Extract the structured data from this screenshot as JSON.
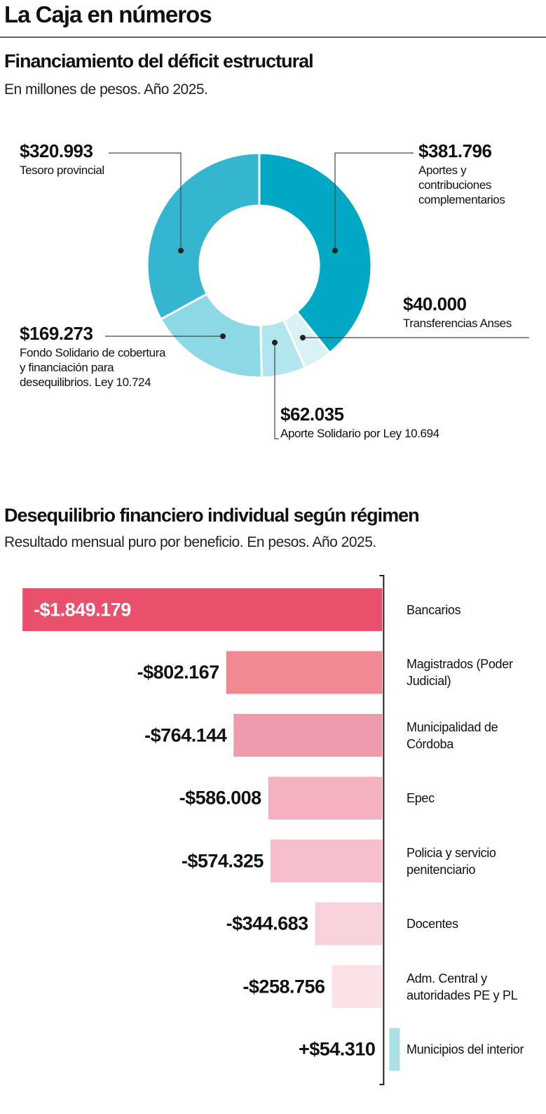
{
  "header": {
    "title": "La Caja en números"
  },
  "chart_data": [
    {
      "type": "donut",
      "title": "Financiamiento del déficit estructural",
      "subtitle": "En millones de pesos. Año 2025.",
      "categories": [
        "Aportes y contribuciones complementarios",
        "Transferencias Anses",
        "Aporte Solidario por Ley 10.694",
        "Fondo Solidario de cobertura y financiación para desequilibrios. Ley 10.724",
        "Tesoro provincial"
      ],
      "values": [
        381796,
        40000,
        62035,
        169273,
        320993
      ],
      "value_labels": [
        "$381.796",
        "$40.000",
        "$62.035",
        "$169.273",
        "$320.993"
      ],
      "colors": [
        "#00a8c3",
        "#d8f2f6",
        "#b2e6ee",
        "#8cd8e5",
        "#34b6d0"
      ]
    },
    {
      "type": "bar",
      "orientation": "horizontal",
      "title": "Desequilibrio financiero individual según régimen",
      "subtitle": "Resultado mensual puro por beneficio. En pesos. Año 2025.",
      "categories": [
        "Bancarios",
        "Magistrados (Poder Judicial)",
        "Municipalidad de Córdoba",
        "Epec",
        "Policia y servicio penitenciario",
        "Docentes",
        "Adm. Central y autoridades PE y PL",
        "Municipios del interior"
      ],
      "values": [
        -1849179,
        -802167,
        -764144,
        -586008,
        -574325,
        -344683,
        -258756,
        54310
      ],
      "value_labels": [
        "-$1.849.179",
        "-$802.167",
        "-$764.144",
        "-$586.008",
        "-$574.325",
        "-$344.683",
        "-$258.756",
        "+$54.310"
      ],
      "colors": [
        "#e8506c",
        "#ef8890",
        "#f09bad",
        "#f4b2c0",
        "#f5bfcc",
        "#f8d2db",
        "#fbe2e7",
        "#a9e1e7"
      ],
      "xlim": [
        -1900000,
        60000
      ]
    }
  ]
}
